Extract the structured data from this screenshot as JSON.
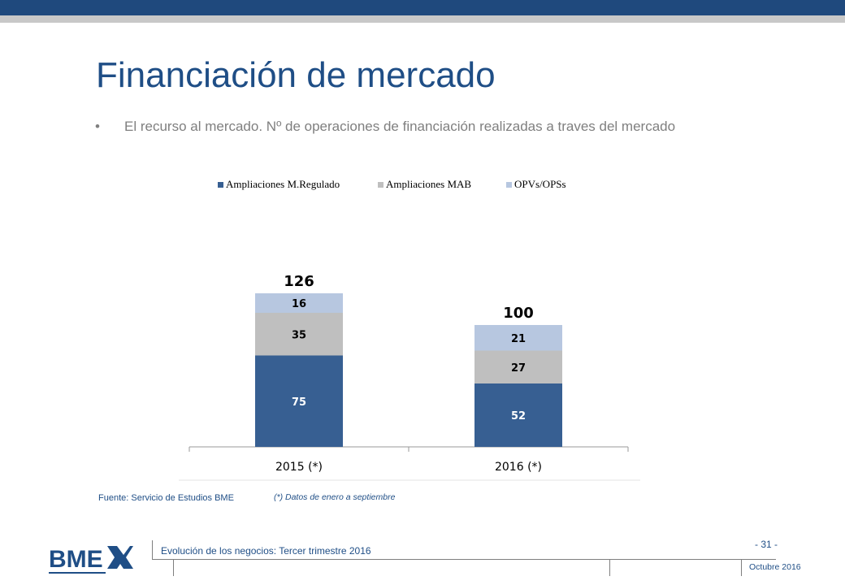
{
  "header": {
    "bar_color": "#1f497d",
    "stripe_color": "#c8c8c8"
  },
  "slide": {
    "title": "Financiación de mercado",
    "bullet_symbol": "•",
    "bullet": "El recurso al mercado. Nº de operaciones de financiación realizadas a traves del mercado",
    "source": "Fuente: Servicio de Estudios BME",
    "note": "(*) Datos de enero a septiembre"
  },
  "chart_data": {
    "type": "bar",
    "stacked": true,
    "categories": [
      "2015 (*)",
      "2016 (*)"
    ],
    "series": [
      {
        "name": "Ampliaciones M.Regulado",
        "values": [
          75,
          52
        ],
        "color": "#375f92"
      },
      {
        "name": "Ampliaciones MAB",
        "values": [
          35,
          27
        ],
        "color": "#bfbfbf"
      },
      {
        "name": "OPVs/OPSs",
        "values": [
          16,
          21
        ],
        "color": "#b7c7e0"
      }
    ],
    "totals": [
      126,
      100
    ],
    "legend_position": "top",
    "grid": false
  },
  "footer": {
    "logo_text": "BME",
    "subtitle": "Evolución de los negocios: Tercer trimestre 2016",
    "page": "- 31 -",
    "date": "Octubre 2016"
  }
}
